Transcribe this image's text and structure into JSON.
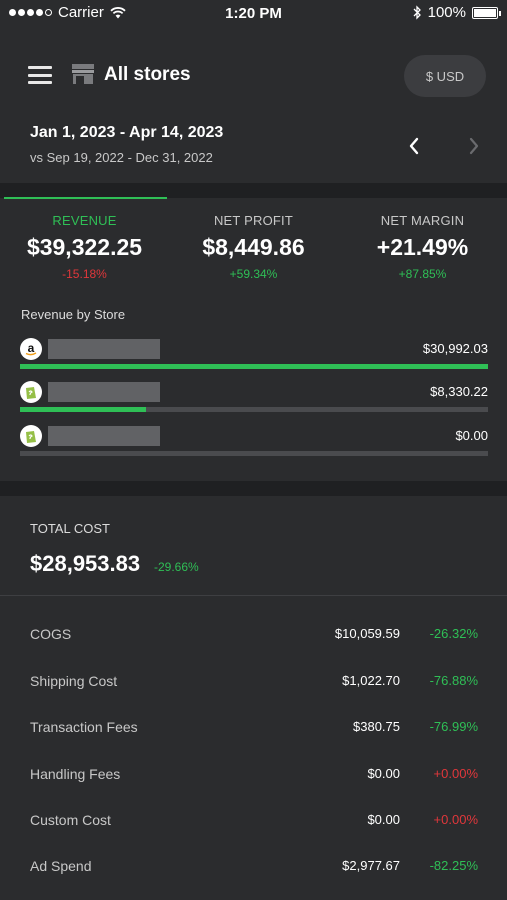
{
  "status_bar": {
    "carrier": "Carrier",
    "time": "1:20 PM",
    "battery": "100%"
  },
  "header": {
    "title": "All stores",
    "currency_label": "$ USD"
  },
  "date_range": {
    "current": "Jan 1, 2023 - Apr 14, 2023",
    "compare": "vs Sep 19, 2022 - Dec 31, 2022"
  },
  "metrics": [
    {
      "label": "REVENUE",
      "value": "$39,322.25",
      "change": "-15.18%"
    },
    {
      "label": "NET PROFIT",
      "value": "$8,449.86",
      "change": "+59.34%"
    },
    {
      "label": "NET MARGIN",
      "value": "+21.49%",
      "change": "+87.85%"
    }
  ],
  "revenue_by_store": {
    "title": "Revenue by Store",
    "stores": [
      {
        "logo": "amazon-logo",
        "amount": "$30,992.03",
        "share": 1.0
      },
      {
        "logo": "shopify-logo",
        "amount": "$8,330.22",
        "share": 0.27
      },
      {
        "logo": "shopify-logo",
        "amount": "$0.00",
        "share": 0
      }
    ]
  },
  "total_cost": {
    "label": "TOTAL COST",
    "value": "$28,953.83",
    "change": "-29.66%"
  },
  "costs": [
    {
      "name": "COGS",
      "value": "$10,059.59",
      "change": "-26.32%"
    },
    {
      "name": "Shipping Cost",
      "value": "$1,022.70",
      "change": "-76.88%"
    },
    {
      "name": "Transaction Fees",
      "value": "$380.75",
      "change": "-76.99%"
    },
    {
      "name": "Handling Fees",
      "value": "$0.00",
      "change": "+0.00%"
    },
    {
      "name": "Custom Cost",
      "value": "$0.00",
      "change": "+0.00%"
    },
    {
      "name": "Ad Spend",
      "value": "$2,977.67",
      "change": "-82.25%"
    }
  ],
  "colors": {
    "positive": "#2fbf56",
    "negative": "#e0373b",
    "background": "#2b2c2e"
  }
}
